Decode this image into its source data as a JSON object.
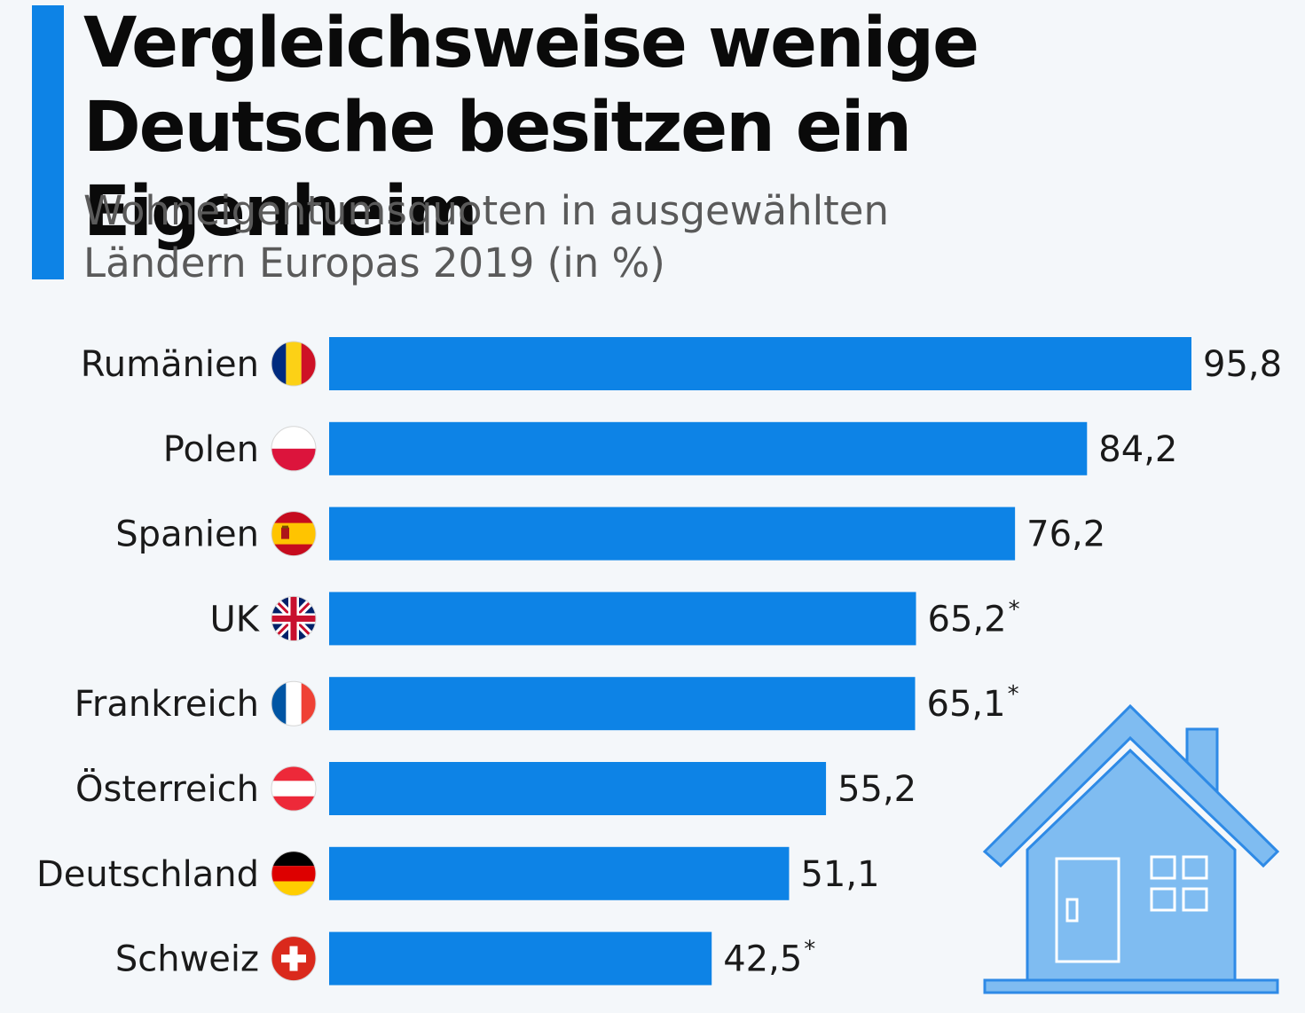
{
  "header": {
    "title_line1": "Vergleichsweise wenige",
    "title_line2": "Deutsche besitzen ein Eigenheim",
    "subtitle_line1": "Wohneigentumsquoten in ausgewählten",
    "subtitle_line2": "Ländern Europas 2019 (in %)"
  },
  "colors": {
    "bar": "#0d83e6",
    "accent": "#0d83e6",
    "house_fill": "#7fbcf1",
    "house_stroke": "#2e8ae6"
  },
  "chart_data": {
    "type": "bar",
    "orientation": "horizontal",
    "title": "Vergleichsweise wenige Deutsche besitzen ein Eigenheim",
    "subtitle": "Wohneigentumsquoten in ausgewählten Ländern Europas 2019 (in %)",
    "xlabel": "",
    "ylabel": "",
    "xlim": [
      0,
      100
    ],
    "grid": false,
    "categories": [
      "Rumänien",
      "Polen",
      "Spanien",
      "UK",
      "Frankreich",
      "Österreich",
      "Deutschland",
      "Schweiz"
    ],
    "values": [
      95.8,
      84.2,
      76.2,
      65.2,
      65.1,
      55.2,
      51.1,
      42.5
    ],
    "value_labels": [
      "95,8",
      "84,2",
      "76,2",
      "65,2",
      "65,1",
      "55,2",
      "51,1",
      "42,5"
    ],
    "footnote_marks": [
      "",
      "",
      "",
      "*",
      "*",
      "",
      "",
      "*"
    ],
    "flags": [
      "romania-flag-icon",
      "poland-flag-icon",
      "spain-flag-icon",
      "uk-flag-icon",
      "france-flag-icon",
      "austria-flag-icon",
      "germany-flag-icon",
      "switzerland-flag-icon"
    ]
  }
}
